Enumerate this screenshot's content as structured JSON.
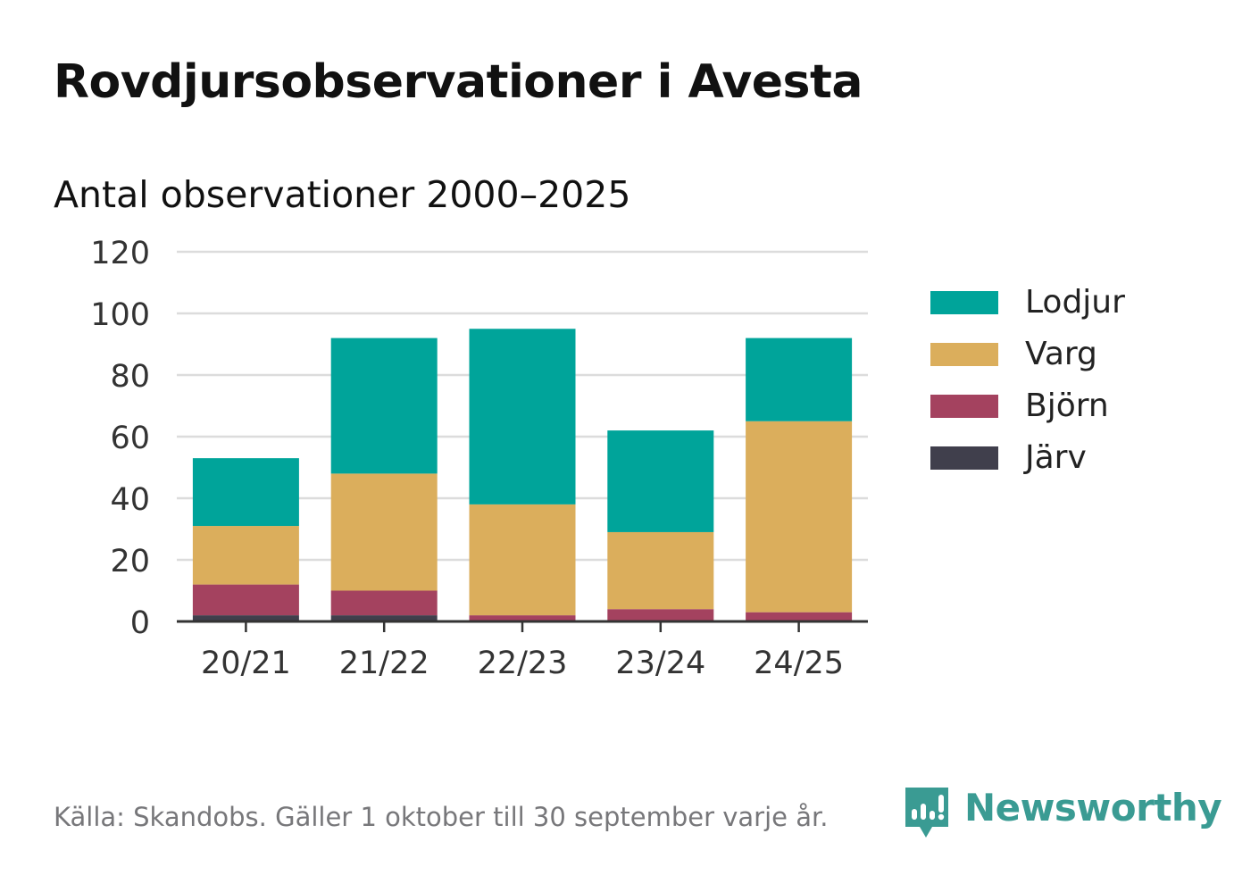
{
  "title": "Rovdjursobservationer i Avesta",
  "subtitle": "Antal observationer 2000–2025",
  "footer": "Källa: Skandobs. Gäller 1 oktober till 30 september varje år.",
  "brand": "Newsworthy",
  "colors": {
    "Lodjur": "#00a49a",
    "Varg": "#dbae5c",
    "Björn": "#a4425f",
    "Järv": "#403f4c",
    "grid": "#dcdcdc",
    "axis": "#333333",
    "brand": "#3a9b93"
  },
  "chart_data": {
    "type": "bar",
    "stacked": true,
    "categories": [
      "20/21",
      "21/22",
      "22/23",
      "23/24",
      "24/25"
    ],
    "series": [
      {
        "name": "Järv",
        "values": [
          2,
          2,
          0,
          0,
          0
        ]
      },
      {
        "name": "Björn",
        "values": [
          10,
          8,
          2,
          4,
          3
        ]
      },
      {
        "name": "Varg",
        "values": [
          19,
          38,
          36,
          25,
          62
        ]
      },
      {
        "name": "Lodjur",
        "values": [
          22,
          44,
          57,
          33,
          27
        ]
      }
    ],
    "legend_order": [
      "Lodjur",
      "Varg",
      "Björn",
      "Järv"
    ],
    "ylim": [
      0,
      120
    ],
    "yticks": [
      0,
      20,
      40,
      60,
      80,
      100,
      120
    ],
    "grid": true,
    "legend_position": "right"
  }
}
